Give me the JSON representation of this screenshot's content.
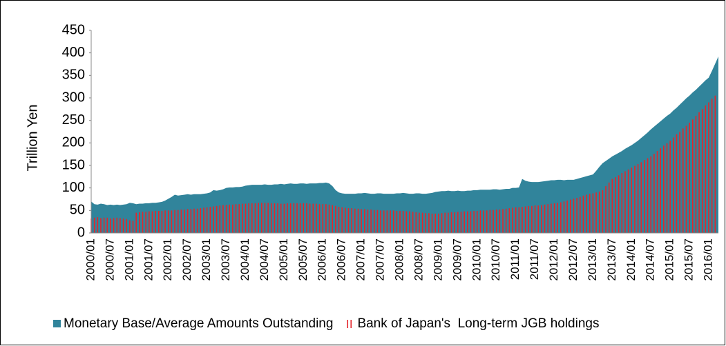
{
  "chart_data": {
    "type": "area",
    "y_label": "Trillion Yen",
    "categories": [
      "2000/01",
      null,
      null,
      null,
      null,
      null,
      "2000/07",
      null,
      null,
      null,
      null,
      null,
      "2001/01",
      null,
      null,
      null,
      null,
      null,
      "2001/07",
      null,
      null,
      null,
      null,
      null,
      "2002/01",
      null,
      null,
      null,
      null,
      null,
      "2002/07",
      null,
      null,
      null,
      null,
      null,
      "2003/01",
      null,
      null,
      null,
      null,
      null,
      "2003/07",
      null,
      null,
      null,
      null,
      null,
      "2004/01",
      null,
      null,
      null,
      null,
      null,
      "2004/07",
      null,
      null,
      null,
      null,
      null,
      "2005/01",
      null,
      null,
      null,
      null,
      null,
      "2005/07",
      null,
      null,
      null,
      null,
      null,
      "2006/01",
      null,
      null,
      null,
      null,
      null,
      "2006/07",
      null,
      null,
      null,
      null,
      null,
      "2007/01",
      null,
      null,
      null,
      null,
      null,
      "2007/07",
      null,
      null,
      null,
      null,
      null,
      "2008/01",
      null,
      null,
      null,
      null,
      null,
      "2008/07",
      null,
      null,
      null,
      null,
      null,
      "2009/01",
      null,
      null,
      null,
      null,
      null,
      "2009/07",
      null,
      null,
      null,
      null,
      null,
      "2010/01",
      null,
      null,
      null,
      null,
      null,
      "2010/07",
      null,
      null,
      null,
      null,
      null,
      "2011/01",
      null,
      null,
      null,
      null,
      null,
      "2011/07",
      null,
      null,
      null,
      null,
      null,
      "2012/01",
      null,
      null,
      null,
      null,
      null,
      "2012/07",
      null,
      null,
      null,
      null,
      null,
      "2013/01",
      null,
      null,
      null,
      null,
      null,
      "2013/07",
      null,
      null,
      null,
      null,
      null,
      "2014/01",
      null,
      null,
      null,
      null,
      null,
      "2014/07",
      null,
      null,
      null,
      null,
      null,
      "2015/01",
      null,
      null,
      null,
      null,
      null,
      "2015/07",
      null,
      null,
      null,
      null,
      null,
      "2016/01",
      null,
      null,
      null
    ],
    "series": [
      {
        "name": "Monetary Base/Average Amounts Outstanding",
        "type": "area",
        "color": "#31849b",
        "values": [
          70,
          64,
          63,
          65,
          64,
          62,
          63,
          62,
          63,
          62,
          63,
          64,
          67,
          66,
          64,
          65,
          65,
          66,
          66,
          67,
          67,
          68,
          69,
          72,
          76,
          80,
          85,
          83,
          84,
          85,
          86,
          85,
          86,
          86,
          86,
          87,
          88,
          90,
          95,
          94,
          95,
          97,
          100,
          101,
          101,
          102,
          102,
          103,
          105,
          106,
          107,
          107,
          107,
          107,
          108,
          107,
          107,
          108,
          108,
          109,
          108,
          109,
          110,
          109,
          109,
          110,
          110,
          109,
          110,
          110,
          110,
          111,
          111,
          112,
          110,
          104,
          95,
          90,
          88,
          87,
          87,
          87,
          87,
          88,
          88,
          89,
          88,
          87,
          87,
          88,
          88,
          87,
          87,
          87,
          87,
          88,
          88,
          89,
          88,
          87,
          87,
          88,
          88,
          87,
          87,
          88,
          89,
          91,
          92,
          93,
          93,
          94,
          93,
          93,
          94,
          93,
          93,
          94,
          94,
          95,
          95,
          96,
          96,
          96,
          96,
          97,
          97,
          96,
          97,
          98,
          98,
          100,
          100,
          101,
          120,
          116,
          114,
          113,
          113,
          113,
          114,
          115,
          116,
          117,
          117,
          118,
          118,
          117,
          118,
          118,
          118,
          120,
          122,
          124,
          126,
          128,
          130,
          138,
          147,
          155,
          160,
          165,
          170,
          174,
          178,
          182,
          187,
          191,
          195,
          200,
          205,
          211,
          217,
          223,
          230,
          236,
          242,
          248,
          254,
          260,
          265,
          272,
          278,
          285,
          292,
          299,
          305,
          312,
          318,
          325,
          332,
          339,
          345,
          360,
          376,
          392
        ]
      },
      {
        "name": "Bank of Japan's  Long-term JGB holdings",
        "type": "bar",
        "color": "#e3262b",
        "values": [
          32,
          34,
          35,
          33,
          34,
          34,
          32,
          33,
          34,
          33,
          32,
          31,
          28,
          27,
          45,
          46,
          47,
          47,
          48,
          48,
          49,
          49,
          49,
          50,
          50,
          50,
          51,
          51,
          52,
          52,
          53,
          53,
          54,
          54,
          55,
          56,
          57,
          58,
          59,
          60,
          61,
          62,
          62,
          63,
          63,
          64,
          64,
          65,
          65,
          66,
          66,
          66,
          67,
          67,
          67,
          67,
          66,
          66,
          66,
          65,
          65,
          66,
          66,
          66,
          66,
          66,
          66,
          66,
          65,
          65,
          65,
          64,
          64,
          64,
          63,
          62,
          60,
          58,
          57,
          56,
          55,
          55,
          54,
          54,
          53,
          53,
          52,
          52,
          51,
          51,
          50,
          50,
          50,
          50,
          50,
          49,
          49,
          49,
          48,
          48,
          47,
          46,
          45,
          45,
          44,
          44,
          43,
          43,
          43,
          44,
          45,
          45,
          46,
          46,
          47,
          47,
          48,
          48,
          48,
          49,
          49,
          50,
          50,
          50,
          51,
          51,
          52,
          52,
          53,
          54,
          55,
          56,
          57,
          57,
          58,
          59,
          60,
          60,
          61,
          61,
          62,
          63,
          64,
          65,
          66,
          67,
          68,
          70,
          72,
          74,
          76,
          78,
          80,
          83,
          85,
          87,
          88,
          90,
          92,
          95,
          104,
          112,
          120,
          124,
          128,
          133,
          137,
          141,
          145,
          149,
          153,
          157,
          162,
          166,
          170,
          176,
          182,
          188,
          194,
          199,
          205,
          212,
          219,
          225,
          232,
          238,
          245,
          252,
          260,
          268,
          275,
          283,
          290,
          298,
          305,
          null
        ]
      }
    ],
    "ylim": [
      0,
      450
    ],
    "yticks": [
      0,
      50,
      100,
      150,
      200,
      250,
      300,
      350,
      400,
      450
    ],
    "grid": false,
    "legend": "bottom"
  }
}
